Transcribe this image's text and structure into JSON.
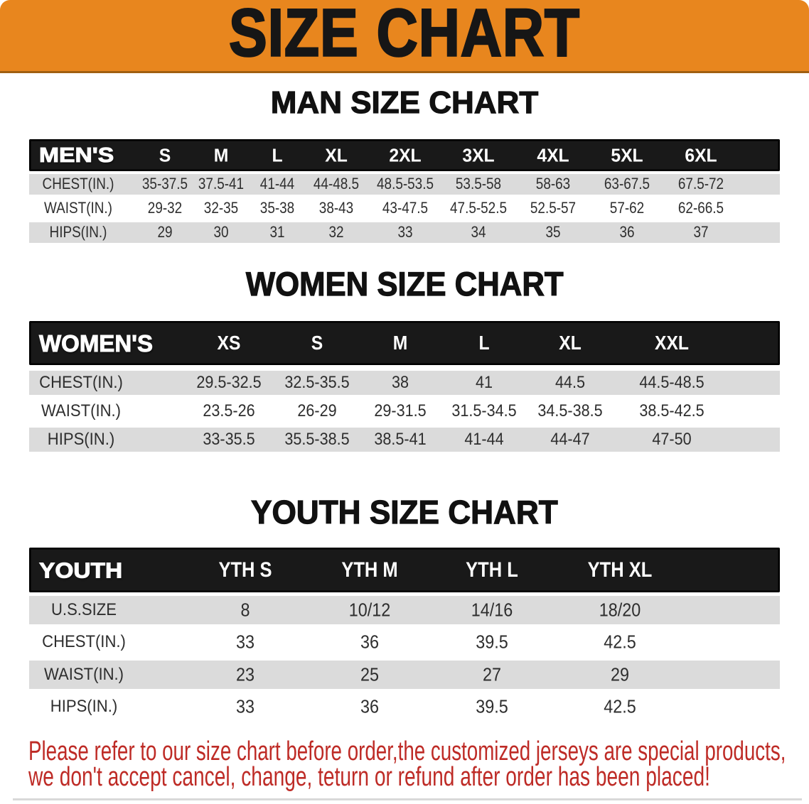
{
  "colors": {
    "banner_bg": "#E8861E",
    "banner_border": "#A05F10",
    "banner_text": "#161616",
    "bar_bg": "#191919",
    "bar_border": "#000000",
    "bar_text": "#FFFFFF",
    "band": "#DBDBDB",
    "row_text": "#2E2E2E",
    "heading_text": "#111111",
    "footer_text": "#BE2B26",
    "edge_line": "#D9D9D9"
  },
  "banner": {
    "title": "SIZE CHART"
  },
  "sections": [
    {
      "id": "men",
      "heading": "MAN SIZE CHART",
      "table": {
        "header_label": "MEN'S",
        "columns": [
          "S",
          "M",
          "L",
          "XL",
          "2XL",
          "3XL",
          "4XL",
          "5XL",
          "6XL"
        ],
        "rows": [
          {
            "label": "CHEST(IN.)",
            "values": [
              "35-37.5",
              "37.5-41",
              "41-44",
              "44-48.5",
              "48.5-53.5",
              "53.5-58",
              "58-63",
              "63-67.5",
              "67.5-72"
            ]
          },
          {
            "label": "WAIST(IN.)",
            "values": [
              "29-32",
              "32-35",
              "35-38",
              "38-43",
              "43-47.5",
              "47.5-52.5",
              "52.5-57",
              "57-62",
              "62-66.5"
            ]
          },
          {
            "label": "HIPS(IN.)",
            "values": [
              "29",
              "30",
              "31",
              "32",
              "33",
              "34",
              "35",
              "36",
              "37"
            ]
          }
        ]
      }
    },
    {
      "id": "women",
      "heading": "WOMEN SIZE CHART",
      "table": {
        "header_label": "WOMEN'S",
        "columns": [
          "XS",
          "S",
          "M",
          "L",
          "XL",
          "XXL"
        ],
        "rows": [
          {
            "label": "CHEST(IN.)",
            "values": [
              "29.5-32.5",
              "32.5-35.5",
              "38",
              "41",
              "44.5",
              "44.5-48.5"
            ]
          },
          {
            "label": "WAIST(IN.)",
            "values": [
              "23.5-26",
              "26-29",
              "29-31.5",
              "31.5-34.5",
              "34.5-38.5",
              "38.5-42.5"
            ]
          },
          {
            "label": "HIPS(IN.)",
            "values": [
              "33-35.5",
              "35.5-38.5",
              "38.5-41",
              "41-44",
              "44-47",
              "47-50"
            ]
          }
        ]
      }
    },
    {
      "id": "youth",
      "heading": "YOUTH SIZE CHART",
      "table": {
        "header_label": "YOUTH",
        "columns": [
          "YTH S",
          "YTH M",
          "YTH L",
          "YTH XL"
        ],
        "rows": [
          {
            "label": "U.S.SIZE",
            "values": [
              "8",
              "10/12",
              "14/16",
              "18/20"
            ]
          },
          {
            "label": "CHEST(IN.)",
            "values": [
              "33",
              "36",
              "39.5",
              "42.5"
            ]
          },
          {
            "label": "WAIST(IN.)",
            "values": [
              "23",
              "25",
              "27",
              "29"
            ]
          },
          {
            "label": "HIPS(IN.)",
            "values": [
              "33",
              "36",
              "39.5",
              "42.5"
            ]
          }
        ]
      }
    }
  ],
  "footer": {
    "line1": "Please refer to our size chart before order,the customized jerseys are special products,",
    "line2": "we don't accept cancel, change, teturn or refund after order has been placed!"
  }
}
